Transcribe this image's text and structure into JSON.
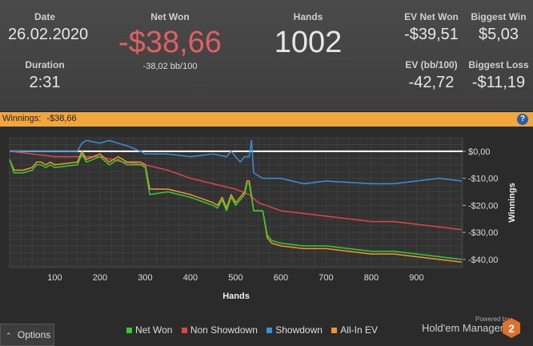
{
  "stats": {
    "date_label": "Date",
    "date_value": "26.02.2020",
    "duration_label": "Duration",
    "duration_value": "2:31",
    "net_won_label": "Net Won",
    "net_won_value": "-$38,66",
    "net_won_sub": "-38,02 bb/100",
    "hands_label": "Hands",
    "hands_value": "1002",
    "ev_net_won_label": "EV Net Won",
    "ev_net_won_value": "-$39,51",
    "ev_bb_label": "EV (bb/100)",
    "ev_bb_value": "-42,72",
    "biggest_win_label": "Biggest Win",
    "biggest_win_value": "$5,03",
    "biggest_loss_label": "Biggest Loss",
    "biggest_loss_value": "-$11,19"
  },
  "banner": {
    "label": "Winnings:",
    "value": "-$38,66",
    "help": "?"
  },
  "bottom": {
    "options_label": "Options",
    "options_icon": "chevron-up-icon",
    "powered_by": "Powered by",
    "brand": "Hold'em Manager",
    "logo_digit": "2"
  },
  "colors": {
    "net_won": "#33cc33",
    "non_showdown": "#e04444",
    "showdown": "#3a8fd8",
    "all_in_ev": "#f0962a",
    "zero_line": "#ffffff",
    "banner": "#f0a63c",
    "negative": "#e06060"
  },
  "chart_data": {
    "type": "line",
    "xlabel": "Hands",
    "ylabel": "Winnings",
    "xlim": [
      0,
      1002
    ],
    "ylim": [
      -43,
      5
    ],
    "xticks": [
      100,
      200,
      300,
      400,
      500,
      600,
      700,
      800,
      900
    ],
    "yticks": [
      0,
      -10,
      -20,
      -30,
      -40
    ],
    "ytick_labels": [
      "$0,00",
      "-$10,00",
      "-$20,00",
      "-$30,00",
      "-$40,00"
    ],
    "grid": true,
    "legend_position": "bottom",
    "series": [
      {
        "name": "Net Won",
        "x": [
          0,
          10,
          30,
          50,
          60,
          70,
          80,
          90,
          100,
          150,
          160,
          170,
          200,
          220,
          240,
          260,
          290,
          300,
          310,
          350,
          400,
          450,
          460,
          470,
          480,
          490,
          500,
          510,
          520,
          525,
          530,
          535,
          540,
          560,
          570,
          580,
          600,
          650,
          700,
          750,
          800,
          850,
          900,
          950,
          1000
        ],
        "y": [
          -3,
          -8,
          -8,
          -7,
          -5,
          -5,
          -6,
          -5,
          -6,
          -5,
          -1,
          -4,
          -2,
          -5,
          -3,
          -5,
          -5,
          -6,
          -16,
          -15,
          -17,
          -20,
          -21,
          -18,
          -22,
          -17,
          -20,
          -18,
          -16,
          -12,
          -12,
          -17,
          -22,
          -22,
          -31,
          -33,
          -34,
          -35,
          -35,
          -36,
          -37,
          -37,
          -38,
          -39,
          -40
        ]
      },
      {
        "name": "Non Showdown",
        "x": [
          0,
          50,
          100,
          150,
          200,
          250,
          300,
          350,
          400,
          450,
          500,
          530,
          550,
          600,
          650,
          700,
          750,
          800,
          850,
          900,
          950,
          1000
        ],
        "y": [
          0,
          -1,
          -2,
          -2,
          -2,
          -4,
          -5,
          -7,
          -10,
          -12,
          -14,
          -16,
          -19,
          -22,
          -23,
          -24,
          -25,
          -26,
          -26,
          -27,
          -28,
          -29
        ]
      },
      {
        "name": "Showdown",
        "x": [
          0,
          150,
          160,
          170,
          200,
          220,
          240,
          260,
          290,
          300,
          320,
          350,
          400,
          450,
          480,
          490,
          500,
          510,
          520,
          530,
          535,
          540,
          560,
          600,
          650,
          700,
          800,
          850,
          900,
          950,
          1000
        ],
        "y": [
          0,
          0,
          3,
          4,
          3,
          4,
          3,
          2,
          0,
          -1,
          -1,
          -1,
          -2,
          -1,
          -2,
          0,
          -2,
          -4,
          -2,
          -2,
          4,
          -8,
          -10,
          -10,
          -12,
          -11,
          -12,
          -12,
          -11,
          -10,
          -11
        ]
      },
      {
        "name": "All-In EV",
        "x": [
          0,
          10,
          30,
          50,
          60,
          70,
          80,
          90,
          100,
          150,
          160,
          170,
          200,
          220,
          240,
          260,
          290,
          300,
          310,
          350,
          400,
          450,
          460,
          470,
          480,
          490,
          500,
          510,
          520,
          525,
          530,
          535,
          540,
          560,
          570,
          580,
          600,
          650,
          700,
          750,
          800,
          850,
          900,
          950,
          1000
        ],
        "y": [
          -3,
          -7,
          -7,
          -6,
          -4,
          -4,
          -5,
          -4,
          -5,
          -4,
          0,
          -3,
          -1,
          -4,
          -2,
          -4,
          -4,
          -5,
          -14,
          -14,
          -16,
          -19,
          -20,
          -17,
          -21,
          -16,
          -19,
          -17,
          -15,
          -11,
          -11,
          -16,
          -22,
          -22,
          -32,
          -34,
          -35,
          -36,
          -36,
          -37,
          -38,
          -38,
          -39,
          -40,
          -41
        ]
      }
    ]
  }
}
